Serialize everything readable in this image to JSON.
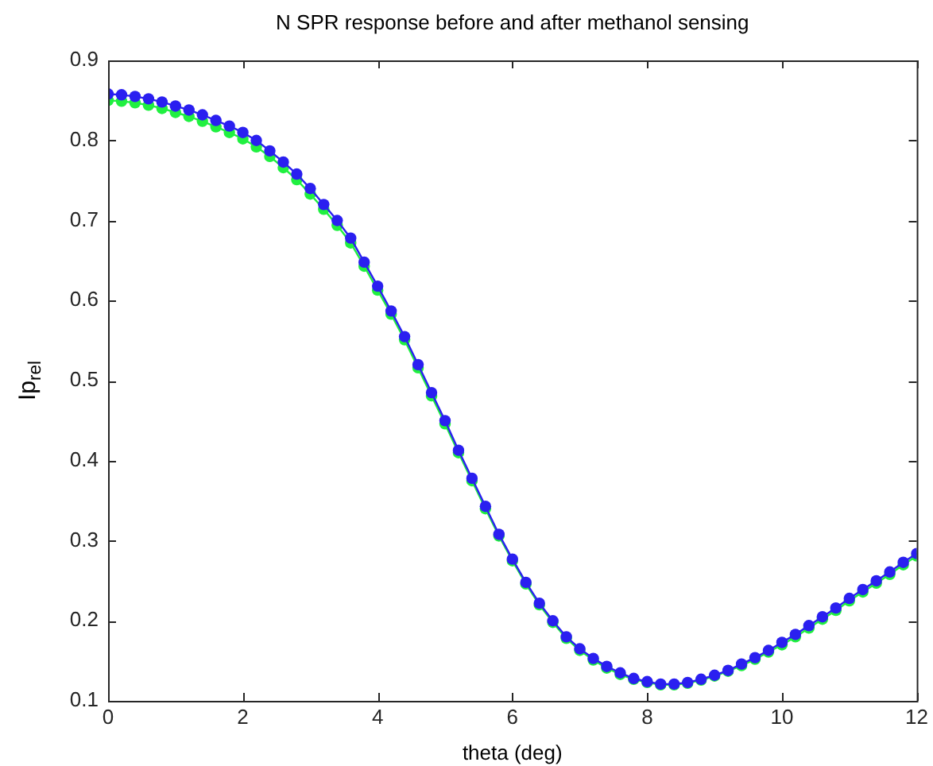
{
  "chart_data": {
    "type": "line",
    "title": "N SPR response before and after methanol sensing",
    "xlabel": "theta (deg)",
    "ylabel": "Ip$_{rel}$",
    "x": [
      0,
      0.2,
      0.4,
      0.6,
      0.8,
      1,
      1.2,
      1.4,
      1.6,
      1.8,
      2,
      2.2,
      2.4,
      2.6,
      2.8,
      3,
      3.2,
      3.4,
      3.6,
      3.8,
      4,
      4.2,
      4.4,
      4.6,
      4.8,
      5,
      5.2,
      5.4,
      5.6,
      5.8,
      6,
      6.2,
      6.4,
      6.6,
      6.8,
      7,
      7.2,
      7.4,
      7.6,
      7.8,
      8,
      8.2,
      8.4,
      8.6,
      8.8,
      9,
      9.2,
      9.4,
      9.6,
      9.8,
      10,
      10.2,
      10.4,
      10.6,
      10.8,
      11,
      11.2,
      11.4,
      11.6,
      11.8,
      12
    ],
    "series": [
      {
        "color": "#20f040",
        "values": [
          0.85,
          0.849,
          0.847,
          0.844,
          0.84,
          0.835,
          0.83,
          0.824,
          0.817,
          0.81,
          0.802,
          0.792,
          0.78,
          0.766,
          0.751,
          0.733,
          0.714,
          0.694,
          0.672,
          0.643,
          0.613,
          0.583,
          0.551,
          0.516,
          0.481,
          0.446,
          0.41,
          0.375,
          0.34,
          0.306,
          0.275,
          0.246,
          0.22,
          0.198,
          0.178,
          0.163,
          0.151,
          0.141,
          0.133,
          0.127,
          0.123,
          0.12,
          0.12,
          0.122,
          0.126,
          0.131,
          0.137,
          0.144,
          0.152,
          0.161,
          0.17,
          0.18,
          0.191,
          0.202,
          0.213,
          0.225,
          0.236,
          0.247,
          0.258,
          0.27,
          0.281
        ]
      },
      {
        "color": "#2a1ff0",
        "values": [
          0.858,
          0.857,
          0.855,
          0.852,
          0.848,
          0.843,
          0.838,
          0.832,
          0.825,
          0.818,
          0.81,
          0.8,
          0.787,
          0.773,
          0.758,
          0.74,
          0.72,
          0.7,
          0.678,
          0.648,
          0.618,
          0.587,
          0.555,
          0.52,
          0.485,
          0.45,
          0.413,
          0.378,
          0.343,
          0.308,
          0.277,
          0.248,
          0.222,
          0.2,
          0.18,
          0.165,
          0.153,
          0.143,
          0.135,
          0.128,
          0.124,
          0.121,
          0.121,
          0.123,
          0.127,
          0.132,
          0.138,
          0.146,
          0.154,
          0.163,
          0.173,
          0.183,
          0.194,
          0.205,
          0.216,
          0.228,
          0.239,
          0.25,
          0.261,
          0.273,
          0.284
        ]
      }
    ],
    "xlim": [
      0,
      12
    ],
    "xticks": [
      0,
      2,
      4,
      6,
      8,
      10,
      12
    ],
    "ylim": [
      0.1,
      0.9
    ],
    "yticks": [
      0.1,
      0.2,
      0.3,
      0.4,
      0.5,
      0.6,
      0.7,
      0.8,
      0.9
    ],
    "grid": false,
    "legend": false,
    "marker": "circle",
    "line_style": "solid"
  }
}
